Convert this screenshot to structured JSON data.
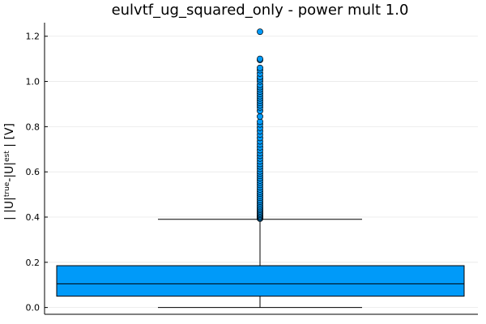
{
  "chart_data": {
    "type": "box",
    "title": "eulvtf_ug_squared_only - power mult 1.0",
    "ylabel": "| |U|true-|U|est | [V]",
    "ylabel_parts": {
      "pre": "| |U|",
      "sup1": "true",
      "mid": "-|U|",
      "sup2": "est",
      "post": " | [V]"
    },
    "ylim": [
      -0.03,
      1.26
    ],
    "yticks": [
      0.0,
      0.2,
      0.4,
      0.6,
      0.8,
      1.0,
      1.2
    ],
    "ytick_labels": [
      "0.0",
      "0.2",
      "0.4",
      "0.6",
      "0.8",
      "1.0",
      "1.2"
    ],
    "grid": true,
    "legend": "none",
    "box": {
      "min": 0.0,
      "q1": 0.05,
      "median": 0.105,
      "q3": 0.185,
      "upper_whisker": 0.39
    },
    "outliers": [
      0.393,
      0.397,
      0.401,
      0.405,
      0.41,
      0.415,
      0.42,
      0.426,
      0.432,
      0.438,
      0.445,
      0.452,
      0.46,
      0.468,
      0.476,
      0.485,
      0.494,
      0.503,
      0.512,
      0.522,
      0.532,
      0.542,
      0.552,
      0.562,
      0.572,
      0.582,
      0.592,
      0.602,
      0.613,
      0.624,
      0.635,
      0.647,
      0.659,
      0.671,
      0.683,
      0.696,
      0.709,
      0.722,
      0.735,
      0.75,
      0.765,
      0.78,
      0.795,
      0.81,
      0.822,
      0.845,
      0.87,
      0.885,
      0.895,
      0.905,
      0.915,
      0.925,
      0.935,
      0.945,
      0.955,
      0.965,
      0.975,
      0.985,
      1.0,
      1.01,
      1.02,
      1.035,
      1.05,
      1.06,
      1.095,
      1.1,
      1.22
    ],
    "colors": {
      "box_fill": "#009af9",
      "box_stroke": "#000000",
      "marker_fill": "#009af9",
      "grid": "#e8e8e8",
      "axis": "#000000"
    }
  }
}
